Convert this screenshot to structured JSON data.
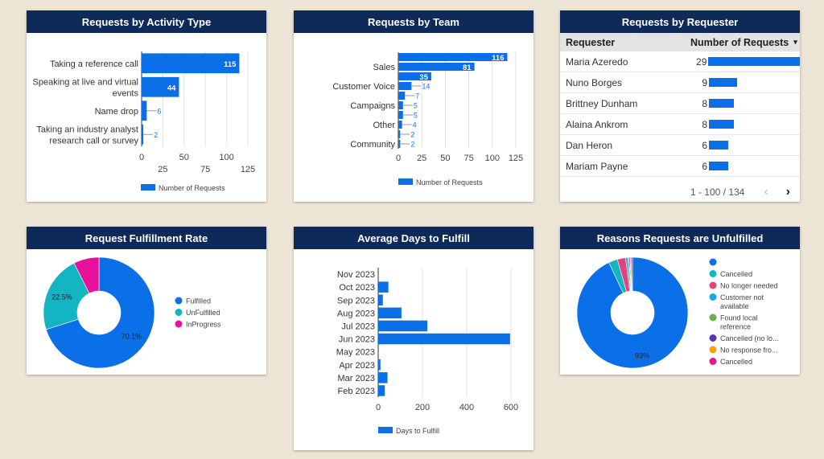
{
  "colors": {
    "bar": "#0b6fe8",
    "header": "#0e2a58",
    "background": "#ece5d5"
  },
  "chart_data": [
    {
      "type": "bar",
      "orientation": "horizontal",
      "title": "Requests by Activity Type",
      "categories": [
        "Taking a reference call",
        "Speaking at live and virtual events",
        "Name drop",
        "Taking an industry analyst research call or survey"
      ],
      "series": [
        {
          "name": "Number of Requests",
          "values": [
            115,
            44,
            6,
            2
          ]
        }
      ],
      "xlim": [
        0,
        125
      ],
      "xticks": [
        "0",
        "25",
        "50",
        "75",
        "100",
        "125"
      ],
      "grid": true,
      "legend": "bottom"
    },
    {
      "type": "bar",
      "orientation": "horizontal",
      "title": "Requests by Team",
      "categories": [
        "",
        "Sales",
        "",
        "Customer Voice",
        "",
        "Campaigns",
        "",
        "Other",
        "",
        "Community"
      ],
      "series": [
        {
          "name": "Number of Requests",
          "values": [
            116,
            81,
            35,
            14,
            7,
            5,
            5,
            4,
            2,
            2
          ]
        }
      ],
      "xlim": [
        0,
        125
      ],
      "xticks": [
        "0",
        "25",
        "50",
        "75",
        "100",
        "125"
      ],
      "grid": true,
      "legend": "bottom"
    },
    {
      "type": "table",
      "title": "Requests by Requester",
      "columns": [
        "Requester",
        "Number of Requests"
      ],
      "sort_indicator": "▾",
      "rows": [
        [
          "Maria Azeredo",
          29
        ],
        [
          "Nuno Borges",
          9
        ],
        [
          "Brittney Dunham",
          8
        ],
        [
          "Alaina Ankrom",
          8
        ],
        [
          "Dan Heron",
          6
        ],
        [
          "Mariam Payne",
          6
        ]
      ],
      "pagination": "1 - 100 / 134"
    },
    {
      "type": "pie",
      "donut": true,
      "title": "Request Fulfillment Rate",
      "labels": [
        "Fulfilled",
        "UnFulfilled",
        "InProgress"
      ],
      "values": [
        70.1,
        22.5,
        7.4
      ],
      "data_labels": [
        "70.1%",
        "22.5%",
        ""
      ],
      "colors": [
        "#0b6fe8",
        "#12b5c1",
        "#e8129a"
      ],
      "legend": "right"
    },
    {
      "type": "bar",
      "orientation": "horizontal",
      "title": "Average Days to Fulfill",
      "categories": [
        "Nov 2023",
        "Oct 2023",
        "Sep 2023",
        "Aug 2023",
        "Jul 2023",
        "Jun 2023",
        "May 2023",
        "Apr 2023",
        "Mar 2023",
        "Feb 2023"
      ],
      "series": [
        {
          "name": "Days to Fulfill",
          "values": [
            0,
            46,
            21,
            105,
            222,
            596,
            0,
            10,
            42,
            30
          ]
        }
      ],
      "xlim": [
        0,
        600
      ],
      "xticks": [
        "0",
        "200",
        "400",
        "600"
      ],
      "grid": true,
      "legend": "bottom"
    },
    {
      "type": "pie",
      "donut": true,
      "title": "Reasons Requests are Unfulfilled",
      "labels": [
        "",
        "Cancelled",
        "No longer needed",
        "Customer not available",
        "Found local reference",
        "Cancelled (no lo...",
        "No response fro...",
        "Cancelled"
      ],
      "values": [
        93,
        2.6,
        2.4,
        0.6,
        0.4,
        0.3,
        0.3,
        0.4
      ],
      "data_labels": [
        "93%",
        "",
        "",
        "",
        "",
        "",
        "",
        ""
      ],
      "colors": [
        "#0b6fe8",
        "#12b5c1",
        "#e8407a",
        "#1aa7ec",
        "#6ab04c",
        "#5e35b1",
        "#f9a000",
        "#e8129a"
      ],
      "legend": "right"
    }
  ]
}
